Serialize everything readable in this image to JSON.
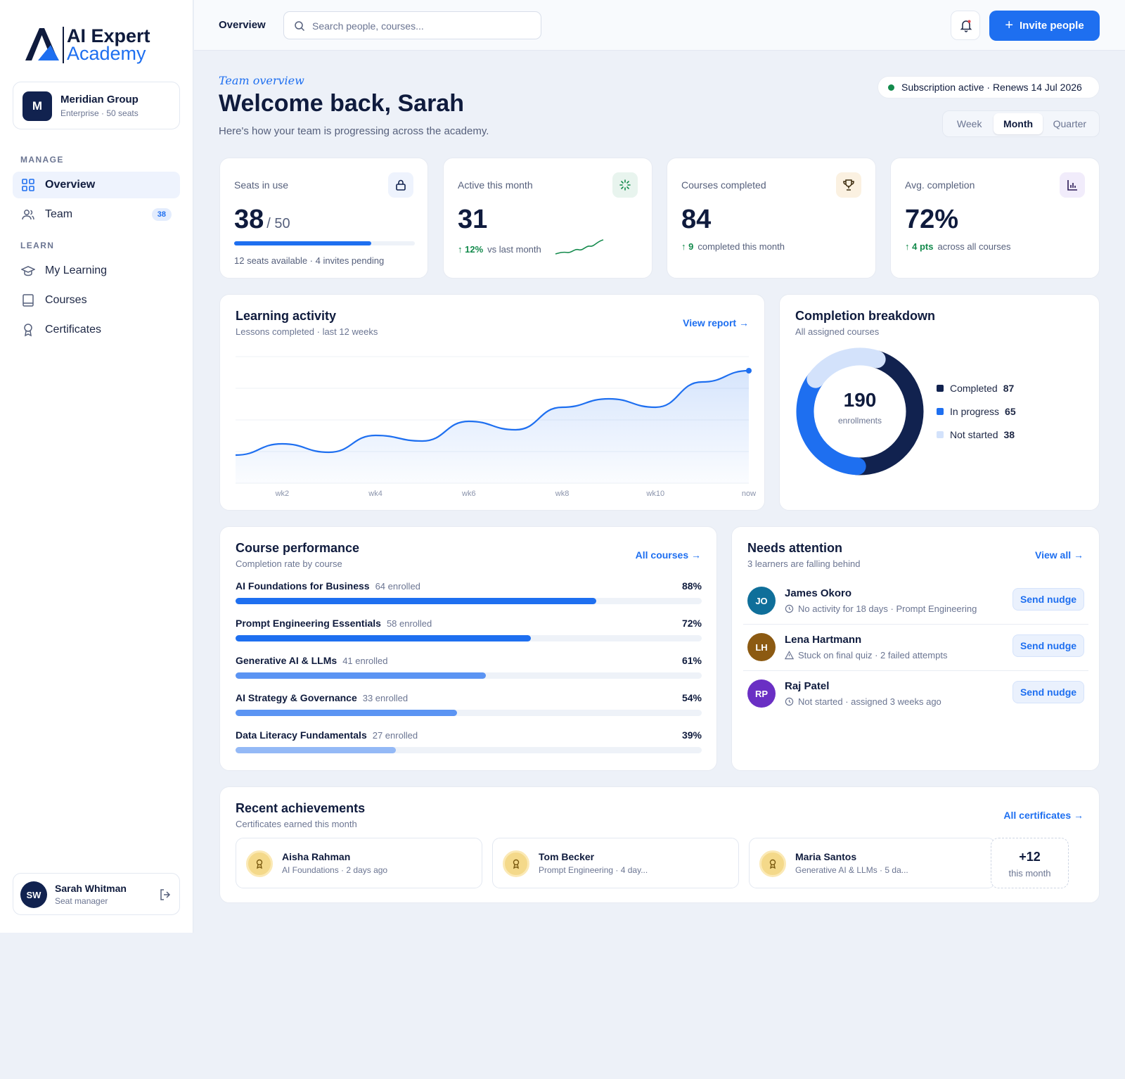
{
  "brand": {
    "line1": "AI Expert",
    "line2": "Academy"
  },
  "org": {
    "initial": "M",
    "name": "Meridian Group",
    "plan": "Enterprise · 50 seats"
  },
  "nav": {
    "manage_label": "MANAGE",
    "learn_label": "LEARN",
    "items": [
      {
        "label": "Overview",
        "icon": "grid-icon",
        "active": true
      },
      {
        "label": "Team",
        "icon": "users-icon",
        "badge": "38"
      },
      {
        "label": "My Learning",
        "icon": "graduation-cap-icon"
      },
      {
        "label": "Courses",
        "icon": "book-icon"
      },
      {
        "label": "Certificates",
        "icon": "award-icon"
      }
    ]
  },
  "user": {
    "initials": "SW",
    "name": "Sarah Whitman",
    "role": "Seat manager"
  },
  "topbar": {
    "title": "Overview",
    "search_placeholder": "Search people, courses...",
    "invite_label": "Invite people"
  },
  "header": {
    "eyebrow": "Team overview",
    "title": "Welcome back, Sarah",
    "subtitle": "Here's how your team is progressing across the academy.",
    "subscription": "Subscription active · Renews 14 Jul 2026",
    "periods": [
      "Week",
      "Month",
      "Quarter"
    ],
    "selected_period": "Month"
  },
  "kpis": {
    "seats": {
      "label": "Seats in use",
      "value": "38",
      "total": "/ 50",
      "fill": 0.76,
      "sub": "12 seats available · 4 invites pending"
    },
    "active": {
      "label": "Active this month",
      "value": "31",
      "delta": "12%",
      "delta_text": "vs last month"
    },
    "courses": {
      "label": "Courses completed",
      "value": "84",
      "delta": "9",
      "delta_text": "completed this month"
    },
    "avg": {
      "label": "Avg. completion",
      "value": "72%",
      "delta": "4 pts",
      "delta_text": "across all courses"
    }
  },
  "colors": {
    "accent": "#1e6ff0",
    "navy": "#11224f",
    "green": "#138a4c",
    "light": "#d3e2fb"
  },
  "activity": {
    "title": "Learning activity",
    "subtitle": "Lessons completed · last 12 weeks",
    "link": "View report →"
  },
  "chart_data": {
    "type": "line",
    "x_tick_labels": [
      "wk2",
      "wk4",
      "wk6",
      "wk8",
      "wk10",
      "now"
    ],
    "values": [
      10,
      14,
      11,
      17,
      15,
      22,
      19,
      27,
      30,
      27,
      36,
      40
    ],
    "ylim": [
      0,
      45
    ],
    "grid": true
  },
  "breakdown": {
    "title": "Completion breakdown",
    "subtitle": "All assigned courses",
    "total": "190",
    "total_label": "enrollments",
    "segments": [
      {
        "label": "Completed",
        "value": 87,
        "color": "#11224f"
      },
      {
        "label": "In progress",
        "value": 65,
        "color": "#1e6ff0"
      },
      {
        "label": "Not started",
        "value": 38,
        "color": "#d3e2fb"
      }
    ]
  },
  "performance": {
    "title": "Course performance",
    "subtitle": "Completion rate by course",
    "link": "All courses →",
    "courses": [
      {
        "name": "AI Foundations for Business",
        "enrolled": "64 enrolled",
        "pct": "88%",
        "rate": 88,
        "color": "#1e6ff0"
      },
      {
        "name": "Prompt Engineering Essentials",
        "enrolled": "58 enrolled",
        "pct": "72%",
        "rate": 72,
        "color": "#1e6ff0"
      },
      {
        "name": "Generative AI & LLMs",
        "enrolled": "41 enrolled",
        "pct": "61%",
        "rate": 61,
        "color": "#5b94f3"
      },
      {
        "name": "AI Strategy & Governance",
        "enrolled": "33 enrolled",
        "pct": "54%",
        "rate": 54,
        "color": "#5b94f3"
      },
      {
        "name": "Data Literacy Fundamentals",
        "enrolled": "27 enrolled",
        "pct": "39%",
        "rate": 39,
        "color": "#94b9f6"
      }
    ]
  },
  "attention": {
    "title": "Needs attention",
    "subtitle": "3 learners are falling behind",
    "link": "View all →",
    "nudge_label": "Send nudge",
    "learners": [
      {
        "initials": "JO",
        "name": "James Okoro",
        "status": "No activity for 18 days · Prompt Engineering",
        "icon": "clock-icon",
        "color": "#0f6f9a"
      },
      {
        "initials": "LH",
        "name": "Lena Hartmann",
        "status": "Stuck on final quiz · 2 failed attempts",
        "icon": "warning-icon",
        "color": "#8c5a12"
      },
      {
        "initials": "RP",
        "name": "Raj Patel",
        "status": "Not started · assigned 3 weeks ago",
        "icon": "clock-icon",
        "color": "#6a2fc4"
      }
    ]
  },
  "achievements": {
    "title": "Recent achievements",
    "subtitle": "Certificates earned this month",
    "link": "All certificates →",
    "items": [
      {
        "name": "Aisha Rahman",
        "detail": "AI Foundations · 2 days ago"
      },
      {
        "name": "Tom Becker",
        "detail": "Prompt Engineering · 4 day..."
      },
      {
        "name": "Maria Santos",
        "detail": "Generative AI & LLMs · 5 da..."
      }
    ],
    "more_count": "+12",
    "more_label": "this month"
  }
}
